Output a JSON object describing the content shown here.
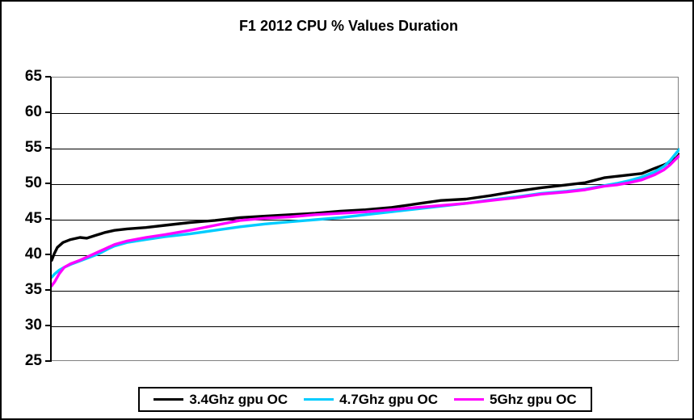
{
  "title": "F1 2012 CPU % Values Duration",
  "chart_data": {
    "type": "line",
    "title": "F1 2012 CPU % Values Duration",
    "xlabel": "",
    "ylabel": "",
    "ylim": [
      25,
      65
    ],
    "yticks": [
      65,
      60,
      55,
      50,
      45,
      40,
      35,
      30,
      25
    ],
    "grid": "horizontal-major-black",
    "plot_frame_color": "#808080",
    "x_tick_labels_visible": false,
    "legend_position": "bottom-center",
    "x_is_fraction_of_duration": true,
    "series": [
      {
        "name": "3.4Ghz gpu OC",
        "color": "#000000",
        "points": [
          [
            0,
            39.3
          ],
          [
            0.004,
            40.2
          ],
          [
            0.009,
            41.1
          ],
          [
            0.018,
            41.8
          ],
          [
            0.03,
            42.2
          ],
          [
            0.045,
            42.5
          ],
          [
            0.056,
            42.4
          ],
          [
            0.07,
            42.8
          ],
          [
            0.085,
            43.2
          ],
          [
            0.1,
            43.5
          ],
          [
            0.12,
            43.7
          ],
          [
            0.15,
            43.9
          ],
          [
            0.18,
            44.2
          ],
          [
            0.22,
            44.6
          ],
          [
            0.26,
            44.9
          ],
          [
            0.3,
            45.3
          ],
          [
            0.34,
            45.5
          ],
          [
            0.38,
            45.7
          ],
          [
            0.42,
            45.9
          ],
          [
            0.46,
            46.2
          ],
          [
            0.5,
            46.4
          ],
          [
            0.54,
            46.7
          ],
          [
            0.58,
            47.2
          ],
          [
            0.62,
            47.7
          ],
          [
            0.66,
            47.9
          ],
          [
            0.7,
            48.4
          ],
          [
            0.74,
            49.0
          ],
          [
            0.78,
            49.5
          ],
          [
            0.82,
            49.9
          ],
          [
            0.85,
            50.2
          ],
          [
            0.88,
            50.9
          ],
          [
            0.9,
            51.1
          ],
          [
            0.92,
            51.3
          ],
          [
            0.94,
            51.5
          ],
          [
            0.96,
            52.2
          ],
          [
            0.975,
            52.7
          ],
          [
            0.985,
            53.1
          ],
          [
            0.995,
            53.7
          ],
          [
            1,
            54.2
          ]
        ]
      },
      {
        "name": "4.7Ghz gpu OC",
        "color": "#00CCFF",
        "points": [
          [
            0,
            36.9
          ],
          [
            0.005,
            37.4
          ],
          [
            0.012,
            37.9
          ],
          [
            0.02,
            38.3
          ],
          [
            0.03,
            38.7
          ],
          [
            0.045,
            39.2
          ],
          [
            0.06,
            39.7
          ],
          [
            0.075,
            40.2
          ],
          [
            0.09,
            40.9
          ],
          [
            0.1,
            41.3
          ],
          [
            0.12,
            41.8
          ],
          [
            0.15,
            42.2
          ],
          [
            0.18,
            42.6
          ],
          [
            0.22,
            43.0
          ],
          [
            0.26,
            43.5
          ],
          [
            0.3,
            44.0
          ],
          [
            0.34,
            44.4
          ],
          [
            0.38,
            44.7
          ],
          [
            0.42,
            45.0
          ],
          [
            0.46,
            45.3
          ],
          [
            0.5,
            45.7
          ],
          [
            0.54,
            46.1
          ],
          [
            0.58,
            46.5
          ],
          [
            0.62,
            46.9
          ],
          [
            0.66,
            47.3
          ],
          [
            0.7,
            47.8
          ],
          [
            0.74,
            48.2
          ],
          [
            0.78,
            48.7
          ],
          [
            0.82,
            49.0
          ],
          [
            0.85,
            49.3
          ],
          [
            0.88,
            49.8
          ],
          [
            0.9,
            50.1
          ],
          [
            0.92,
            50.5
          ],
          [
            0.94,
            51.0
          ],
          [
            0.96,
            51.7
          ],
          [
            0.975,
            52.5
          ],
          [
            0.985,
            53.3
          ],
          [
            0.995,
            54.4
          ],
          [
            1,
            54.9
          ]
        ]
      },
      {
        "name": "5Ghz gpu OC",
        "color": "#FF00FF",
        "points": [
          [
            0,
            35.7
          ],
          [
            0.005,
            36.3
          ],
          [
            0.012,
            37.4
          ],
          [
            0.02,
            38.3
          ],
          [
            0.03,
            38.8
          ],
          [
            0.045,
            39.3
          ],
          [
            0.06,
            39.9
          ],
          [
            0.075,
            40.5
          ],
          [
            0.09,
            41.1
          ],
          [
            0.1,
            41.5
          ],
          [
            0.12,
            42.0
          ],
          [
            0.15,
            42.5
          ],
          [
            0.18,
            42.9
          ],
          [
            0.22,
            43.5
          ],
          [
            0.26,
            44.2
          ],
          [
            0.3,
            44.9
          ],
          [
            0.34,
            45.2
          ],
          [
            0.38,
            45.4
          ],
          [
            0.42,
            45.7
          ],
          [
            0.46,
            45.9
          ],
          [
            0.5,
            46.1
          ],
          [
            0.54,
            46.4
          ],
          [
            0.58,
            46.7
          ],
          [
            0.62,
            47.0
          ],
          [
            0.66,
            47.3
          ],
          [
            0.7,
            47.7
          ],
          [
            0.74,
            48.1
          ],
          [
            0.78,
            48.6
          ],
          [
            0.82,
            48.9
          ],
          [
            0.85,
            49.2
          ],
          [
            0.88,
            49.7
          ],
          [
            0.9,
            49.9
          ],
          [
            0.92,
            50.2
          ],
          [
            0.94,
            50.6
          ],
          [
            0.96,
            51.3
          ],
          [
            0.975,
            52.0
          ],
          [
            0.985,
            52.7
          ],
          [
            0.995,
            53.6
          ],
          [
            1,
            54.0
          ]
        ]
      }
    ]
  },
  "colors": {
    "background": "#FFFFFF",
    "border": "#000000",
    "gridline": "#000000",
    "plot_frame": "#808080"
  }
}
